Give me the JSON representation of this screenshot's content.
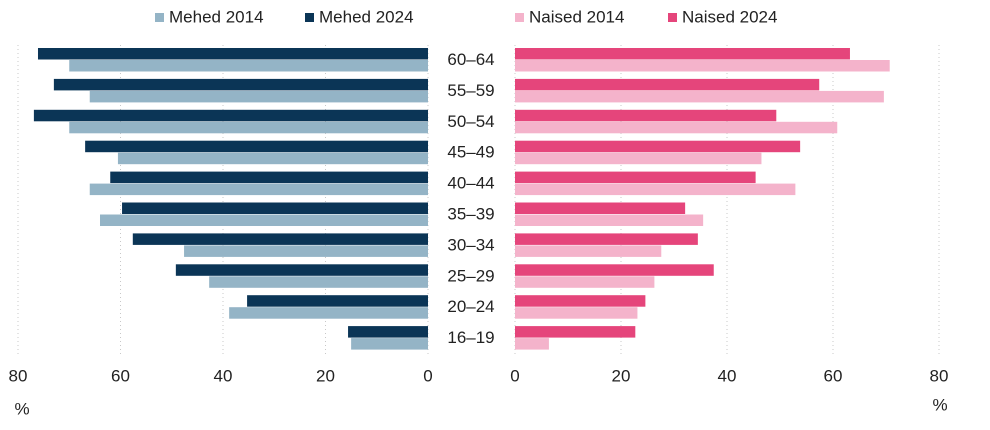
{
  "chart_data": {
    "type": "pyramid",
    "categories": [
      "60–64",
      "55–59",
      "50–54",
      "45–49",
      "40–44",
      "35–39",
      "30–34",
      "25–29",
      "20–24",
      "16–19"
    ],
    "series": [
      {
        "name": "Mehed 2014",
        "color": "#94b4c6",
        "side": "left",
        "values": [
          70.0,
          66.0,
          70.0,
          60.5,
          66.0,
          64.0,
          47.6,
          42.7,
          38.8,
          15.0
        ]
      },
      {
        "name": "Mehed 2024",
        "color": "#0b3556",
        "side": "left",
        "values": [
          76.1,
          73.0,
          76.9,
          66.9,
          62.0,
          59.7,
          57.6,
          49.2,
          35.3,
          15.6
        ]
      },
      {
        "name": "Naised 2014",
        "color": "#f4b3cb",
        "side": "right",
        "values": [
          70.7,
          69.6,
          60.8,
          46.5,
          52.9,
          35.5,
          27.6,
          26.3,
          23.1,
          6.4
        ]
      },
      {
        "name": "Naised 2024",
        "color": "#e5457b",
        "side": "right",
        "values": [
          63.2,
          57.4,
          49.3,
          53.8,
          45.4,
          32.1,
          34.5,
          37.5,
          24.6,
          22.7
        ]
      }
    ],
    "x_label": "%",
    "xlim": [
      0,
      80
    ],
    "xticks": [
      0,
      20,
      40,
      60,
      80
    ],
    "grid": true
  }
}
